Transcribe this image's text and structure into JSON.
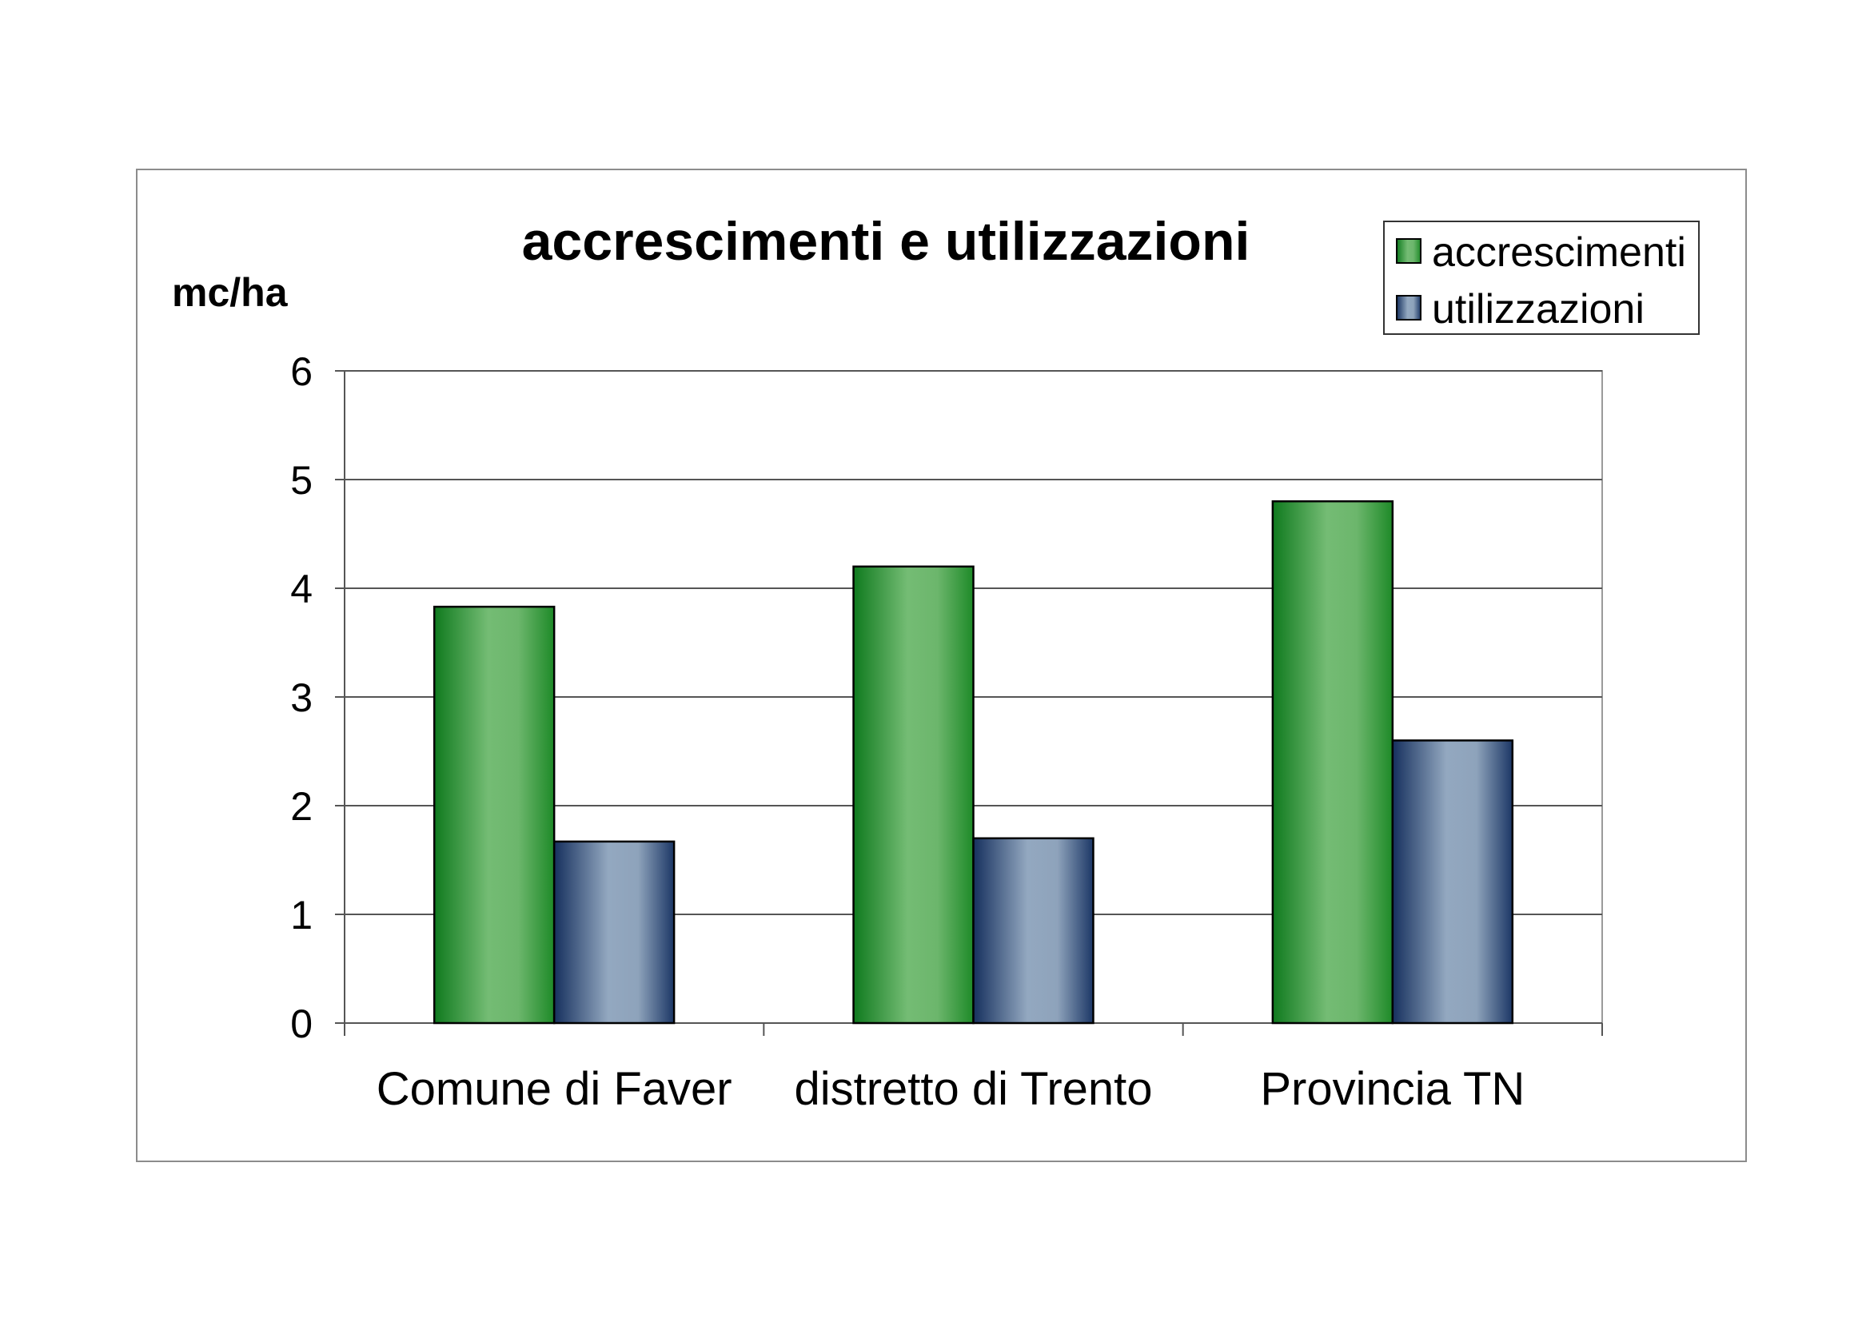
{
  "chart_data": {
    "type": "bar",
    "title": "accrescimenti e utilizzazioni",
    "ylabel": "mc/ha",
    "xlabel": "",
    "categories": [
      "Comune di Faver",
      "distretto di Trento",
      "Provincia TN"
    ],
    "series": [
      {
        "name": "accrescimenti",
        "values": [
          3.83,
          4.2,
          4.8
        ],
        "color": "#3f9e47"
      },
      {
        "name": "utilizzazioni",
        "values": [
          1.67,
          1.7,
          2.6
        ],
        "color": "#6f8aa8"
      }
    ],
    "ylim": [
      0,
      6
    ],
    "yticks": [
      "0",
      "1",
      "2",
      "3",
      "4",
      "5",
      "6"
    ],
    "grid": true,
    "legend_position": "top-right"
  }
}
